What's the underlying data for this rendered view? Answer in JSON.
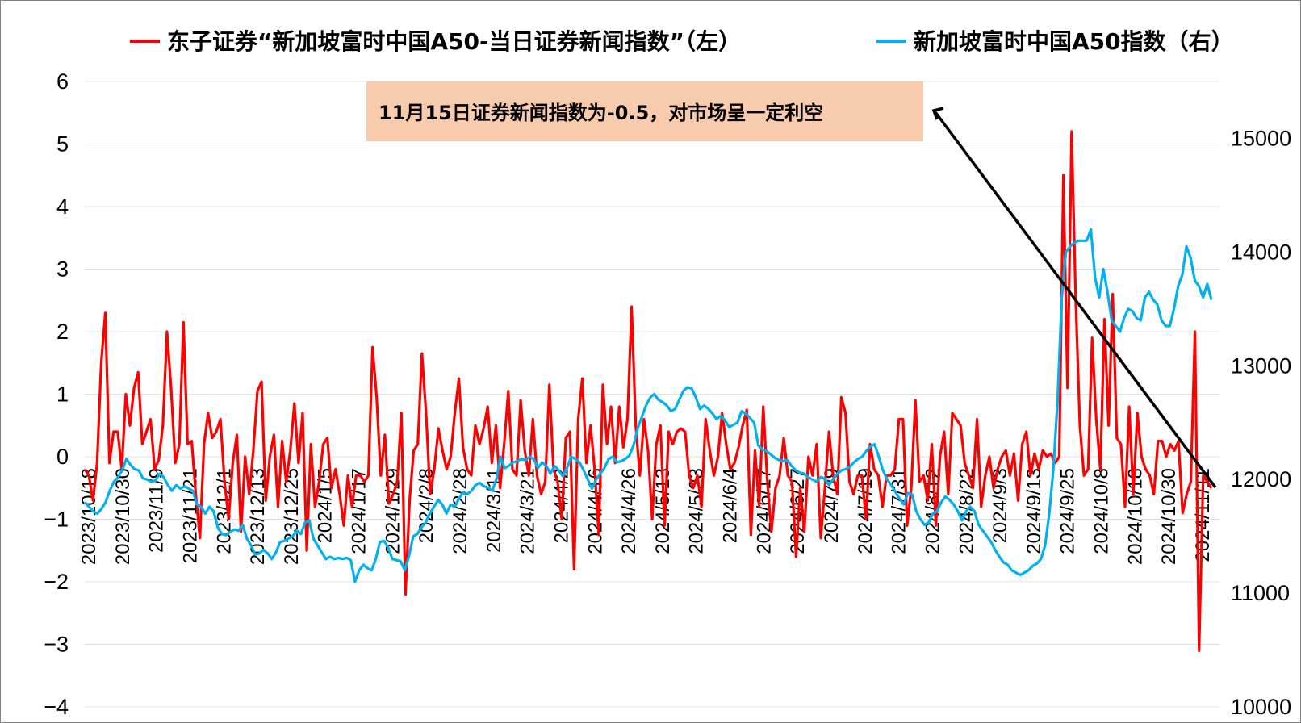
{
  "chart_data": {
    "type": "line",
    "legend": {
      "placement": "top",
      "left_series_label": "东子证券“新加坡富时中国A50-当日证券新闻指数”（左）",
      "right_series_label": "新加坡富时中国A50指数（右）"
    },
    "annotation": "11月15日证券新闻指数为-0.5，对市场呈一定利空",
    "y_left": {
      "min": -4,
      "max": 6,
      "ticks": [
        "−4",
        "−3",
        "−2",
        "−1",
        "0",
        "1",
        "2",
        "3",
        "4",
        "5",
        "6"
      ]
    },
    "y_right": {
      "min": 10000,
      "max": 15500,
      "ticks": [
        "10000",
        "11000",
        "12000",
        "13000",
        "14000",
        "15000"
      ]
    },
    "x_tick_labels": [
      "2023/10/18",
      "2023/10/30",
      "2023/11/9",
      "2023/11/21",
      "2023/12/1",
      "2023/12/13",
      "2023/12/25",
      "2024/1/5",
      "2024/1/17",
      "2024/1/29",
      "2024/2/8",
      "2024/2/28",
      "2024/3/11",
      "2024/3/21",
      "2024/4/2",
      "2024/4/16",
      "2024/4/26",
      "2024/5/13",
      "2024/5/23",
      "2024/6/4",
      "2024/6/17",
      "2024/6/27",
      "2024/7/9",
      "2024/7/19",
      "2024/7/31",
      "2024/8/12",
      "2024/8/22",
      "2024/9/3",
      "2024/9/13",
      "2024/9/25",
      "2024/10/8",
      "2024/10/18",
      "2024/10/30",
      "2024/11/11"
    ],
    "grid": true,
    "series": [
      {
        "name": "东子证券“新加坡富时中国A50-当日证券新闻指数”（左）",
        "axis": "left",
        "color": "#ff0000",
        "values": [
          -0.2,
          -0.3,
          -0.7,
          -0.1,
          1.5,
          2.3,
          -0.1,
          0.4,
          0.4,
          -0.2,
          1.0,
          0.5,
          1.1,
          1.35,
          0.2,
          0.4,
          0.6,
          -0.2,
          -0.05,
          0.5,
          2.0,
          1.1,
          -0.1,
          0.2,
          2.15,
          0.2,
          0.25,
          -0.6,
          -1.3,
          0.2,
          0.7,
          0.3,
          0.4,
          0.6,
          -0.4,
          -1.0,
          -0.1,
          0.35,
          -1.2,
          0.0,
          -0.6,
          0.1,
          1.05,
          1.2,
          -0.7,
          0.0,
          0.35,
          -0.8,
          0.25,
          -0.4,
          0.1,
          0.85,
          -0.1,
          0.7,
          -1.5,
          0.2,
          -0.8,
          -0.4,
          0.2,
          0.3,
          -0.5,
          -0.2,
          -0.6,
          -1.1,
          -0.3,
          -0.8,
          -0.3,
          -0.3,
          -0.4,
          -0.3,
          1.75,
          0.95,
          -0.3,
          0.35,
          -0.75,
          -0.6,
          -0.4,
          0.7,
          -2.2,
          -0.7,
          0.1,
          0.2,
          1.65,
          0.7,
          -0.6,
          -0.2,
          0.45,
          0.1,
          -0.2,
          0.0,
          0.7,
          1.25,
          0.15,
          -0.2,
          -0.3,
          0.5,
          0.2,
          0.45,
          0.8,
          -0.1,
          0.5,
          -0.5,
          0.2,
          1.05,
          -0.2,
          -0.3,
          0.9,
          0.1,
          -0.3,
          0.6,
          -0.3,
          -0.6,
          -0.4,
          1.15,
          -0.2,
          -0.4,
          -1.0,
          0.3,
          0.4,
          -1.8,
          0.6,
          1.25,
          -0.1,
          0.5,
          -0.2,
          -1.25,
          1.15,
          0.2,
          0.8,
          -0.1,
          0.8,
          0.15,
          0.6,
          2.4,
          0.5,
          -0.3,
          0.6,
          0.1,
          -1.0,
          0.2,
          0.5,
          -1.1,
          0.4,
          0.2,
          0.4,
          0.45,
          0.4,
          -0.3,
          -0.5,
          -0.3,
          -0.8,
          0.6,
          0.1,
          -0.3,
          0.0,
          0.7,
          0.2,
          -0.2,
          -0.1,
          0.15,
          0.5,
          0.75,
          -1.25,
          0.1,
          -0.8,
          0.8,
          -0.4,
          -1.2,
          -0.5,
          -0.3,
          0.3,
          -0.3,
          -0.4,
          -1.6,
          -0.5,
          -1.2,
          0.0,
          -0.3,
          0.2,
          -1.3,
          -0.5,
          0.4,
          -0.3,
          -0.6,
          0.95,
          0.7,
          -0.4,
          -0.6,
          -0.3,
          -0.3,
          -1.0,
          0.2,
          -0.2,
          -0.3,
          -0.8,
          -0.3,
          -0.3,
          -0.2,
          0.6,
          0.6,
          -1.1,
          -0.5,
          0.9,
          -0.4,
          -0.3,
          -0.7,
          0.2,
          -1.1,
          0.0,
          0.4,
          -0.6,
          0.7,
          0.6,
          0.5,
          -0.1,
          -0.3,
          -0.5,
          0.6,
          -0.8,
          -0.3,
          0.0,
          -0.5,
          -0.2,
          0.0,
          0.1,
          -0.3,
          0.05,
          -0.7,
          0.2,
          0.4,
          -0.3,
          0.05,
          -0.2,
          0.1,
          0.0,
          0.05,
          -0.1,
          0.0,
          4.5,
          1.1,
          5.2,
          2.5,
          0.5,
          -0.3,
          -0.2,
          1.9,
          0.6,
          -0.2,
          2.2,
          0.5,
          2.6,
          0.3,
          0.2,
          -0.8,
          0.8,
          -0.6,
          0.7,
          0.0,
          -0.2,
          -0.3,
          -0.6,
          0.25,
          0.25,
          0.0,
          0.2,
          0.1,
          0.25,
          -0.9,
          -0.6,
          -0.4,
          2.0,
          -3.1,
          -0.3,
          -0.4,
          -0.5
        ]
      },
      {
        "name": "新加坡富时中国A50指数（右）",
        "axis": "right",
        "color": "#00b0f0",
        "values": [
          11800,
          11760,
          11720,
          11700,
          11740,
          11800,
          11900,
          11980,
          12020,
          12080,
          12180,
          12130,
          12090,
          12080,
          12010,
          12000,
          11980,
          11990,
          12050,
          12020,
          11950,
          11900,
          11950,
          11920,
          11940,
          11920,
          11900,
          11780,
          11760,
          11700,
          11760,
          11720,
          11580,
          11520,
          11510,
          11540,
          11560,
          11550,
          11600,
          11480,
          11420,
          11340,
          11350,
          11380,
          11350,
          11300,
          11360,
          11450,
          11460,
          11480,
          11500,
          11550,
          11520,
          11620,
          11640,
          11480,
          11420,
          11360,
          11300,
          11320,
          11300,
          11310,
          11300,
          11310,
          11290,
          11100,
          11200,
          11250,
          11220,
          11200,
          11300,
          11450,
          11460,
          11400,
          11300,
          11290,
          11280,
          11200,
          11330,
          11500,
          11520,
          11580,
          11620,
          11700,
          11760,
          11820,
          11780,
          11700,
          11780,
          11760,
          11830,
          11890,
          11870,
          11900,
          11950,
          11970,
          11940,
          11930,
          11900,
          12000,
          12200,
          12100,
          12120,
          12150,
          12160,
          12180,
          12170,
          12200,
          12180,
          12100,
          12150,
          12120,
          12050,
          12120,
          12080,
          12030,
          12100,
          12200,
          12180,
          12150,
          12080,
          12000,
          11920,
          12000,
          12050,
          12100,
          12180,
          12200,
          12150,
          12160,
          12180,
          12210,
          12300,
          12450,
          12550,
          12650,
          12720,
          12750,
          12700,
          12680,
          12650,
          12600,
          12620,
          12700,
          12780,
          12810,
          12800,
          12720,
          12620,
          12650,
          12620,
          12580,
          12530,
          12560,
          12520,
          12460,
          12480,
          12500,
          12600,
          12580,
          12540,
          12500,
          12300,
          12260,
          12250,
          12220,
          12190,
          12170,
          12160,
          12170,
          12120,
          12080,
          12060,
          12050,
          12020,
          12000,
          11980,
          12020,
          12010,
          11950,
          12000,
          12050,
          12080,
          12090,
          12110,
          12150,
          12180,
          12200,
          12250,
          12290,
          12310,
          12200,
          12080,
          12000,
          11950,
          11890,
          11830,
          11780,
          11880,
          11870,
          11720,
          11650,
          11600,
          11620,
          11700,
          11720,
          11800,
          11850,
          11820,
          11780,
          11720,
          11640,
          11720,
          11760,
          11720,
          11600,
          11550,
          11500,
          11450,
          11380,
          11320,
          11270,
          11250,
          11200,
          11180,
          11160,
          11180,
          11200,
          11240,
          11260,
          11300,
          11420,
          11700,
          12100,
          12700,
          13600,
          14000,
          14050,
          14080,
          14100,
          14100,
          14100,
          14200,
          13780,
          13600,
          13850,
          13650,
          13400,
          13350,
          13300,
          13420,
          13500,
          13480,
          13420,
          13400,
          13600,
          13650,
          13580,
          13540,
          13400,
          13350,
          13350,
          13500,
          13700,
          13800,
          14050,
          13950,
          13750,
          13700,
          13600,
          13720,
          13580
        ]
      }
    ]
  }
}
